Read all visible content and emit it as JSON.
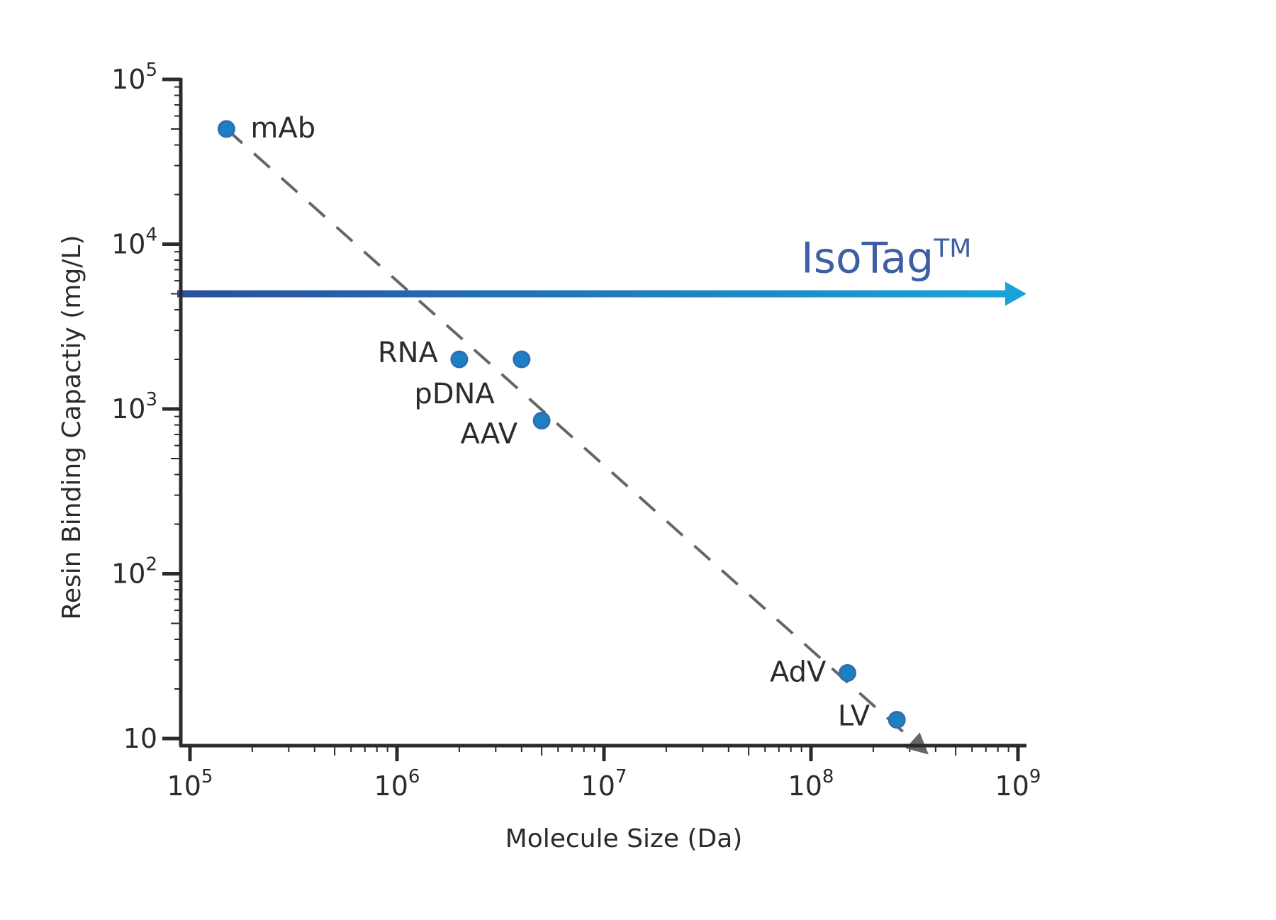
{
  "chart_data": {
    "type": "scatter",
    "title": "",
    "xlabel": "Molecule Size (Da)",
    "ylabel": "Resin Binding Capactiy (mg/L)",
    "x_scale": "log",
    "y_scale": "log",
    "xlim": [
      100000,
      1000000000
    ],
    "ylim": [
      10,
      100000
    ],
    "x_ticks": [
      {
        "base": "10",
        "exp": "5"
      },
      {
        "base": "10",
        "exp": "6"
      },
      {
        "base": "10",
        "exp": "7"
      },
      {
        "base": "10",
        "exp": "8"
      },
      {
        "base": "10",
        "exp": "9"
      }
    ],
    "y_ticks": [
      {
        "base": "10",
        "exp": "5"
      },
      {
        "base": "10",
        "exp": "4"
      },
      {
        "base": "10",
        "exp": "3"
      },
      {
        "base": "10",
        "exp": "2"
      },
      {
        "base": "10",
        "exp": ""
      }
    ],
    "grid": false,
    "points": [
      {
        "label": "mAb",
        "x": 150000,
        "y": 50000
      },
      {
        "label": "RNA",
        "x": 2000000,
        "y": 2000
      },
      {
        "label": "pDNA",
        "x": 4000000,
        "y": 2000
      },
      {
        "label": "AAV",
        "x": 5000000,
        "y": 850
      },
      {
        "label": "AdV",
        "x": 150000000,
        "y": 25
      },
      {
        "label": "LV",
        "x": 260000000,
        "y": 13
      }
    ],
    "trend_line": {
      "from": {
        "x": 150000,
        "y": 50000
      },
      "to": {
        "x": 370000000,
        "y": 8
      },
      "style": "dashed"
    },
    "isotag_line": {
      "label": "IsoTag",
      "superscript": "TM",
      "y": 5000
    },
    "colors": {
      "point": "#1f7fc4",
      "point_border": "#2f6fb0",
      "trend": "#666666",
      "axis": "#2b2b2b",
      "isotag_text": "#3d5fa3",
      "isotag_gradient_start": "#2a4f9e",
      "isotag_gradient_end": "#1aa3d9"
    }
  }
}
